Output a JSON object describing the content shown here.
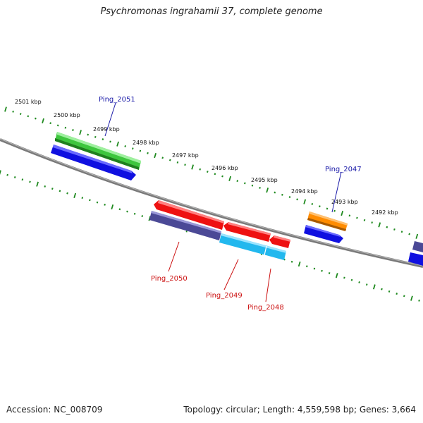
{
  "title": "Psychromonas ingrahamii 37, complete genome",
  "footer": {
    "accession": "Accession: NC_008709",
    "summary": "Topology: circular; Length: 4,559,598 bp; Genes: 3,664"
  },
  "colors": {
    "backbone": "#7a7a7a",
    "tick": "#1f8a1f",
    "label_forward": "#1a1aa8",
    "label_reverse": "#cc1111",
    "green": "#3ec63e",
    "blue": "#1010e0",
    "red": "#ee1111",
    "purple": "#4b4996",
    "cyan": "#22b8ee",
    "orange": "#ff8c00"
  },
  "scale": {
    "unit": "kbp",
    "tick_labels": [
      "2501 kbp",
      "2500 kbp",
      "2499 kbp",
      "2498 kbp",
      "2497 kbp",
      "2496 kbp",
      "2495 kbp",
      "2494 kbp",
      "2493 kbp",
      "2492 kbp"
    ]
  },
  "gene_labels": {
    "ping_2051": "Ping_2051",
    "ping_2047": "Ping_2047",
    "ping_2050": "Ping_2050",
    "ping_2049": "Ping_2049",
    "ping_2048": "Ping_2048"
  }
}
